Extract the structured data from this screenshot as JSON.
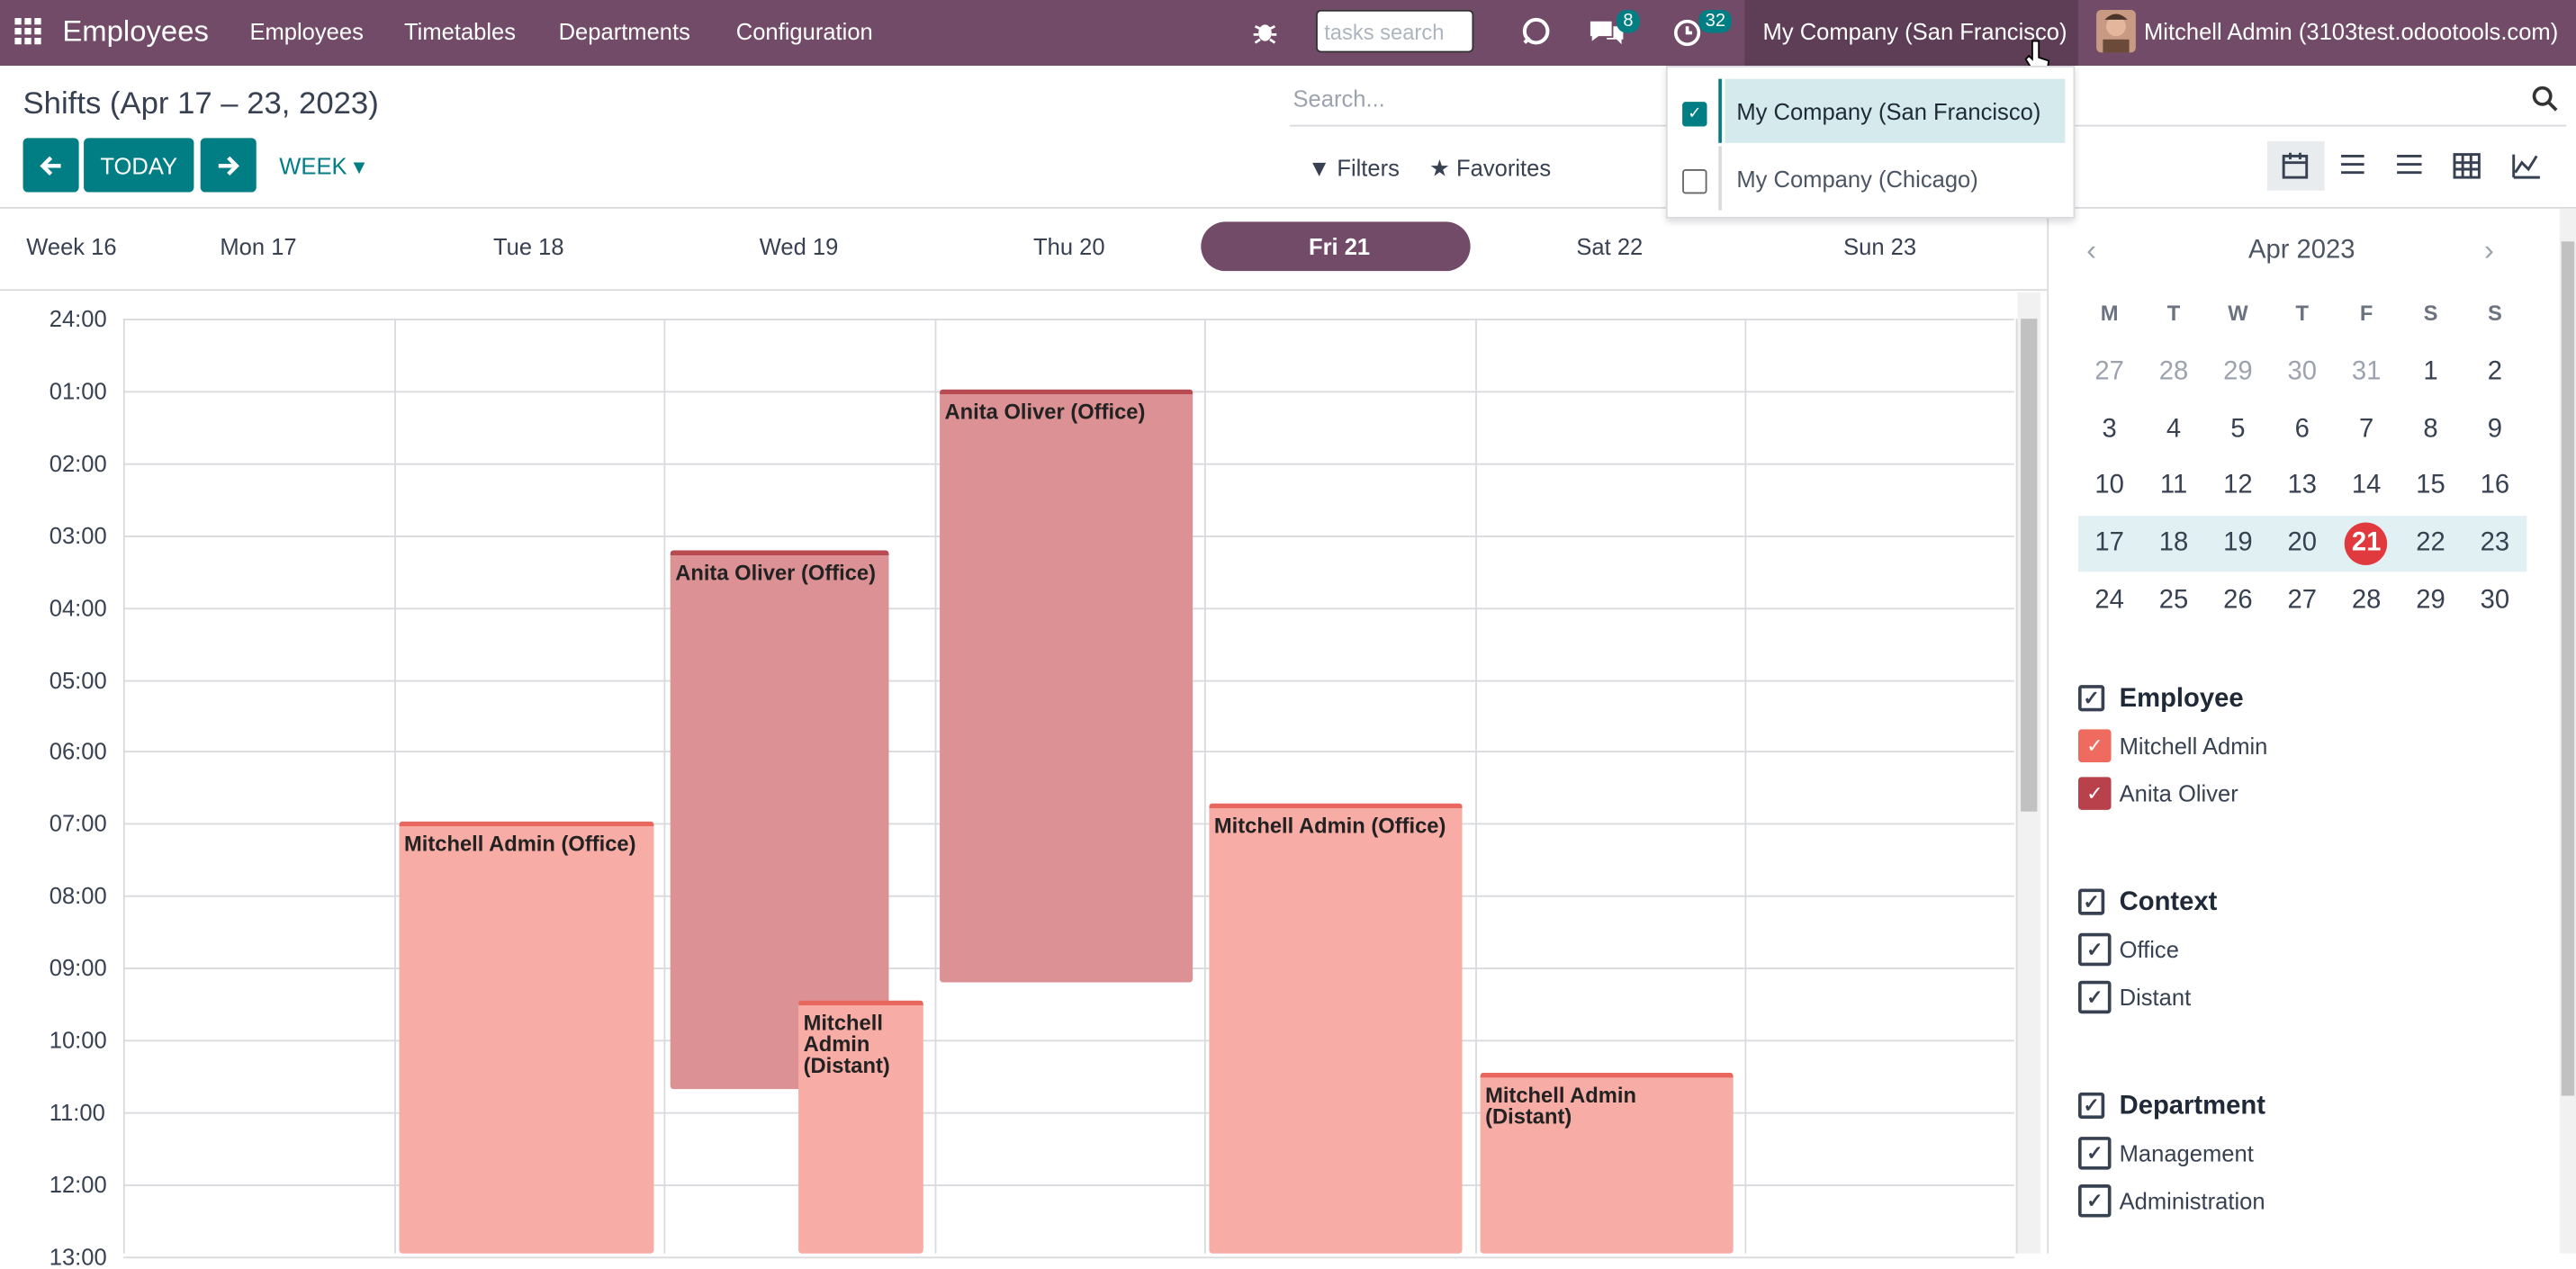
{
  "navbar": {
    "app": "Employees",
    "menu": [
      "Employees",
      "Timetables",
      "Departments",
      "Configuration"
    ],
    "search_placeholder": "tasks search",
    "messages_count": 8,
    "activities_count": 32,
    "company": "My Company (San Francisco)",
    "user": "Mitchell Admin (3103test.odootools.com)"
  },
  "company_dropdown": {
    "items": [
      {
        "label": "My Company (San Francisco)",
        "checked": true
      },
      {
        "label": "My Company (Chicago)",
        "checked": false
      }
    ]
  },
  "control_panel": {
    "title": "Shifts (Apr 17 – 23, 2023)",
    "today": "TODAY",
    "scale": "WEEK",
    "search_placeholder": "Search...",
    "filters": "Filters",
    "favorites": "Favorites"
  },
  "calendar": {
    "week": "Week 16",
    "days": [
      "Mon 17",
      "Tue 18",
      "Wed 19",
      "Thu 20",
      "Fri 21",
      "Sat 22",
      "Sun 23"
    ],
    "today_index": 4,
    "hours": [
      "24:00",
      "01:00",
      "02:00",
      "03:00",
      "04:00",
      "05:00",
      "06:00",
      "07:00",
      "08:00",
      "09:00",
      "10:00",
      "11:00",
      "12:00",
      "13:00"
    ],
    "events": [
      {
        "title": "Mitchell Admin (Office)",
        "employee": 0
      },
      {
        "title": "Anita Oliver (Office)",
        "employee": 1
      },
      {
        "title": "Mitchell Admin (Distant)",
        "employee": 0
      },
      {
        "title": "Anita Oliver (Office)",
        "employee": 1
      },
      {
        "title": "Mitchell Admin (Office)",
        "employee": 0
      },
      {
        "title": "Mitchell Admin (Distant)",
        "employee": 0
      }
    ]
  },
  "mini_calendar": {
    "month": "Apr 2023",
    "weekdays": [
      "M",
      "T",
      "W",
      "T",
      "F",
      "S",
      "S"
    ],
    "weeks": [
      [
        27,
        28,
        29,
        30,
        31,
        1,
        2
      ],
      [
        3,
        4,
        5,
        6,
        7,
        8,
        9
      ],
      [
        10,
        11,
        12,
        13,
        14,
        15,
        16
      ],
      [
        17,
        18,
        19,
        20,
        21,
        22,
        23
      ],
      [
        24,
        25,
        26,
        27,
        28,
        29,
        30
      ]
    ],
    "current_week": 3,
    "today": 21
  },
  "filters": [
    {
      "title": "Employee",
      "items": [
        {
          "label": "Mitchell Admin",
          "color": "#ef6b5f"
        },
        {
          "label": "Anita Oliver",
          "color": "#b8414b"
        }
      ]
    },
    {
      "title": "Context",
      "items": [
        {
          "label": "Office"
        },
        {
          "label": "Distant"
        }
      ]
    },
    {
      "title": "Department",
      "items": [
        {
          "label": "Management"
        },
        {
          "label": "Administration"
        }
      ]
    }
  ]
}
